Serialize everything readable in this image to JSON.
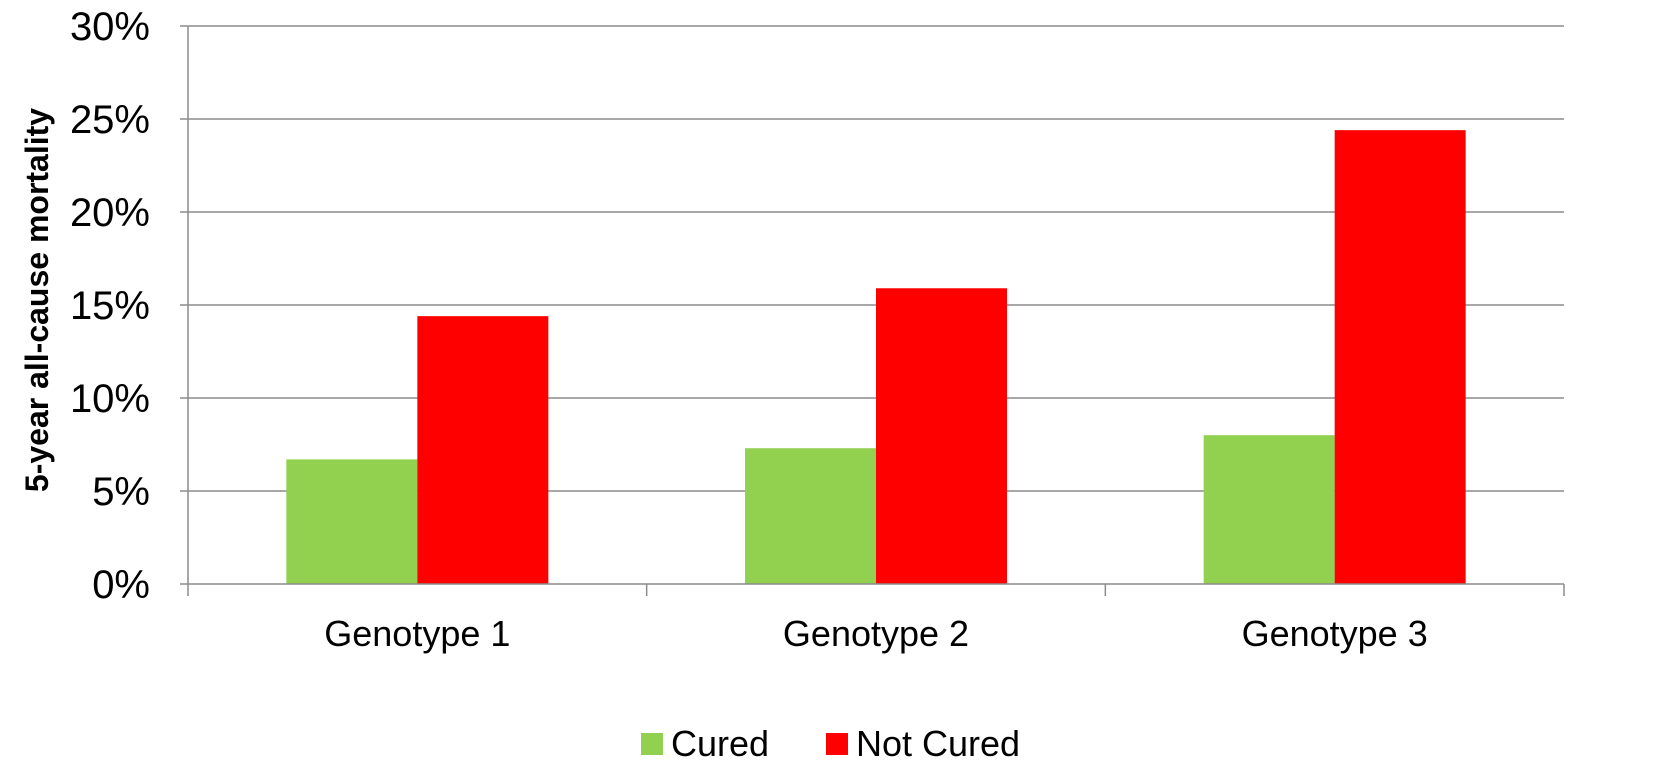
{
  "chart_data": {
    "type": "bar",
    "title": "",
    "xlabel": "",
    "ylabel": "5-year all-cause mortality",
    "ylim": [
      0,
      30
    ],
    "yticks": [
      0,
      5,
      10,
      15,
      20,
      25,
      30
    ],
    "ytick_labels": [
      "0%",
      "5%",
      "10%",
      "15%",
      "20%",
      "25%",
      "30%"
    ],
    "y_unit": "percent",
    "grid": true,
    "legend_position": "bottom",
    "categories": [
      "Genotype 1",
      "Genotype 2",
      "Genotype 3"
    ],
    "series": [
      {
        "name": "Cured",
        "color": "#92d050",
        "values": [
          6.7,
          7.3,
          8.0
        ]
      },
      {
        "name": "Not Cured",
        "color": "#ff0000",
        "values": [
          14.4,
          15.9,
          24.4
        ]
      }
    ]
  }
}
